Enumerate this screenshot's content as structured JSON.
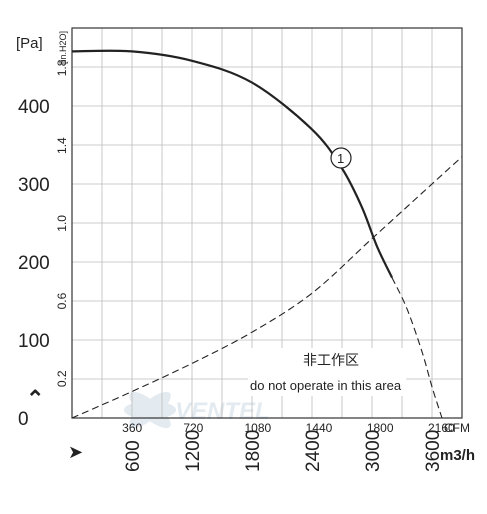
{
  "chart_data": {
    "type": "line",
    "axes": {
      "y_pa": {
        "unit": "[Pa]",
        "ticks": [
          0,
          100,
          200,
          300,
          400
        ],
        "range": [
          0,
          500
        ]
      },
      "y_inh2o": {
        "unit": "[in.H2O]",
        "ticks": [
          "0.2",
          "0.6",
          "1.0",
          "1.4",
          "1.8"
        ]
      },
      "x_cfm": {
        "unit": "CFM",
        "ticks": [
          "360",
          "720",
          "1080",
          "1440",
          "1800",
          "2160"
        ]
      },
      "x_m3h": {
        "unit": "m3/h",
        "ticks": [
          "600",
          "1200",
          "1800",
          "2400",
          "3000",
          "3600"
        ],
        "range": [
          0,
          3900
        ]
      }
    },
    "grid": true,
    "series": [
      {
        "name": "1",
        "style": "solid",
        "x": [
          0,
          600,
          1200,
          1800,
          2400,
          2700,
          2900,
          3050,
          3200
        ],
        "y": [
          470,
          470,
          458,
          430,
          370,
          320,
          270,
          220,
          180
        ]
      },
      {
        "style": "dashed",
        "x": [
          3200,
          3350,
          3500,
          3600,
          3700
        ],
        "y": [
          180,
          140,
          85,
          40,
          0
        ]
      },
      {
        "style": "dashed",
        "x": [
          0,
          600,
          1200,
          1800,
          2400,
          3000,
          3600,
          3900
        ],
        "y": [
          0,
          34,
          70,
          110,
          160,
          230,
          300,
          335
        ]
      }
    ],
    "annotations": [
      "1",
      "非工作区",
      "do not operate in this area"
    ]
  },
  "arrows": {
    "up": "⌃",
    "right": "➤"
  },
  "watermark": "VENTEL"
}
